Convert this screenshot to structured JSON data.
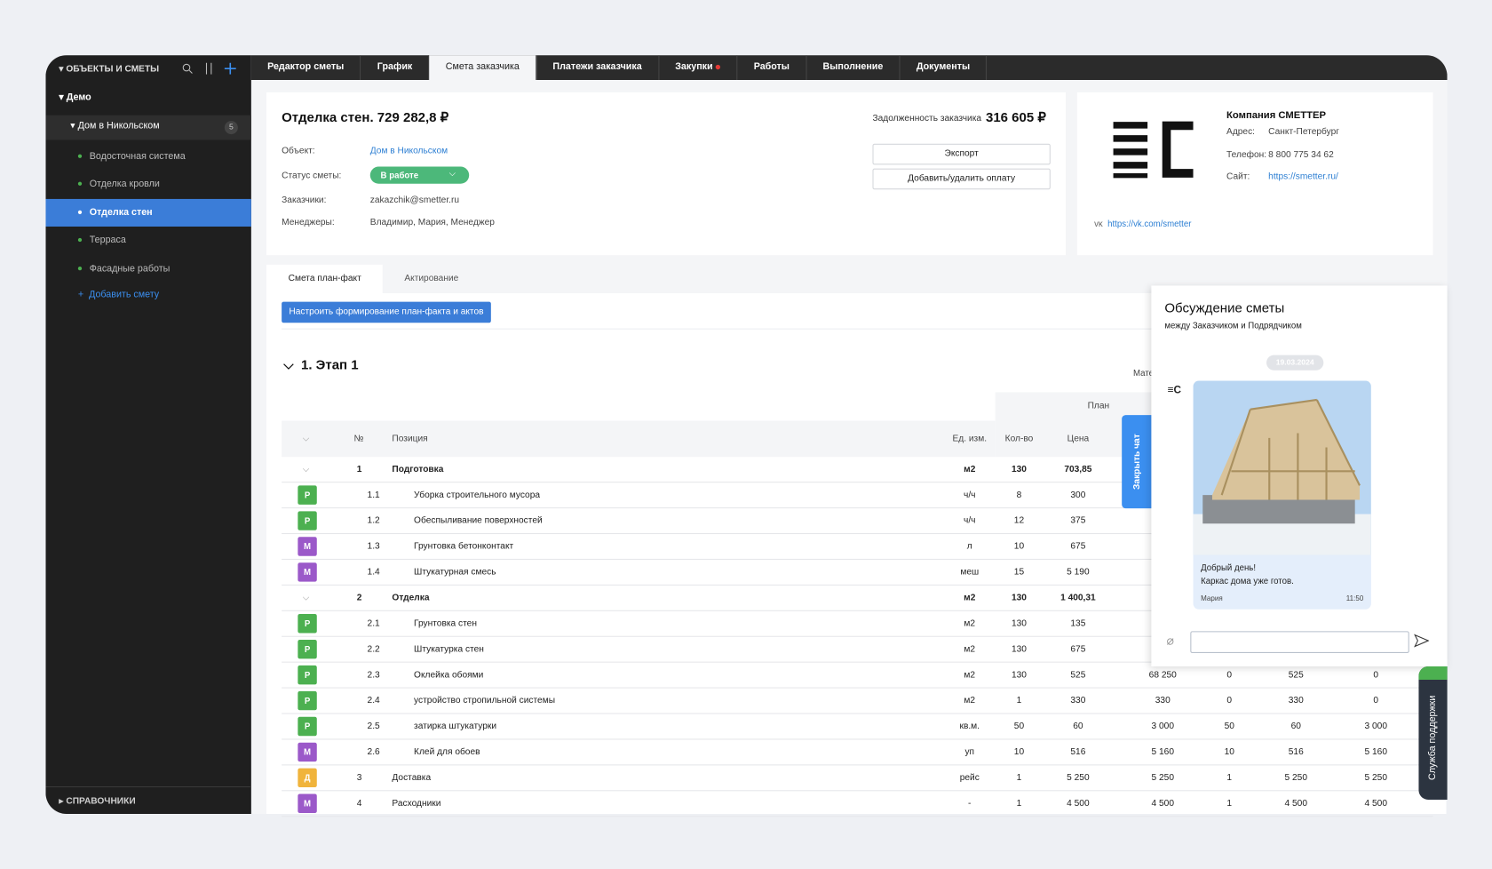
{
  "sidebar": {
    "header": "ОБЪЕКТЫ И СМЕТЫ",
    "group": "Демо",
    "object": "Дом в Никольском",
    "object_badge": "5",
    "items": [
      "Водосточная система",
      "Отделка кровли",
      "Отделка стен",
      "Терраса",
      "Фасадные работы"
    ],
    "active_item": 2,
    "add": "Добавить смету",
    "footer": "СПРАВОЧНИКИ"
  },
  "tabs": {
    "items": [
      "Редактор сметы",
      "График",
      "Смета заказчика",
      "Платежи заказчика",
      "Закупки",
      "Работы",
      "Выполнение",
      "Документы"
    ],
    "active": 2,
    "dot": 4
  },
  "estimate": {
    "title": "Отделка стен. 729 282,8 ₽",
    "debt_label": "Задолженность заказчика",
    "debt": "316 605 ₽",
    "fields": [
      {
        "label": "Объект:",
        "value": "Дом в Никольском"
      },
      {
        "label": "Статус сметы:",
        "value": "В работе"
      },
      {
        "label": "Заказчики:",
        "value": "zakazchik@smetter.ru"
      },
      {
        "label": "Менеджеры:",
        "value": "Владимир, Мария, Менеджер"
      }
    ],
    "buttons": [
      "Экспорт",
      "Добавить/удалить оплату"
    ]
  },
  "company": {
    "name": "Компания СМЕТТЕР",
    "rows": [
      {
        "label": "Адрес:",
        "value": "Санкт-Петербург"
      },
      {
        "label": "Телефон:",
        "value": "8 800 775 34 62"
      },
      {
        "label": "Сайт:",
        "value": "https://smetter.ru/"
      }
    ],
    "vk": "https://vk.com/smetter"
  },
  "subtabs": {
    "items": [
      "Смета план-факт",
      "Актирование"
    ],
    "active": 0
  },
  "setup_button": "Настроить формирование план-факта и актов",
  "stage": "1. Этап 1",
  "table": {
    "group_cut": "Мате",
    "plan": "План",
    "columns": [
      "№",
      "Позиция",
      "Ед. изм.",
      "Кол-во",
      "Цена"
    ],
    "rows": [
      {
        "num": "1",
        "name": "Подготовка",
        "unit": "м2",
        "qty": "130",
        "price": "703,85",
        "rest": []
      },
      {
        "badge": "Р",
        "num": "1.1",
        "name": "Уборка строительного мусора",
        "unit": "ч/ч",
        "qty": "8",
        "price": "300",
        "rest": []
      },
      {
        "badge": "Р",
        "num": "1.2",
        "name": "Обеспыливание поверхностей",
        "unit": "ч/ч",
        "qty": "12",
        "price": "375",
        "rest": []
      },
      {
        "badge": "М",
        "num": "1.3",
        "name": "Грунтовка бетонконтакт",
        "unit": "л",
        "qty": "10",
        "price": "675",
        "rest": []
      },
      {
        "badge": "М",
        "num": "1.4",
        "name": "Штукатурная смесь",
        "unit": "меш",
        "qty": "15",
        "price": "5 190",
        "rest": []
      },
      {
        "num": "2",
        "name": "Отделка",
        "unit": "м2",
        "qty": "130",
        "price": "1 400,31",
        "rest": []
      },
      {
        "badge": "Р",
        "num": "2.1",
        "name": "Грунтовка стен",
        "unit": "м2",
        "qty": "130",
        "price": "135",
        "rest": []
      },
      {
        "badge": "Р",
        "num": "2.2",
        "name": "Штукатурка стен",
        "unit": "м2",
        "qty": "130",
        "price": "675",
        "rest": []
      },
      {
        "badge": "Р",
        "num": "2.3",
        "name": "Оклейка обоями",
        "unit": "м2",
        "qty": "130",
        "price": "525",
        "rest": [
          "68 250",
          "0",
          "525",
          "0"
        ]
      },
      {
        "badge": "Р",
        "num": "2.4",
        "name": "устройство стропильной системы",
        "unit": "м2",
        "qty": "1",
        "price": "330",
        "rest": [
          "330",
          "0",
          "330",
          "0"
        ]
      },
      {
        "badge": "Р",
        "num": "2.5",
        "name": "затирка штукатурки",
        "unit": "кв.м.",
        "qty": "50",
        "price": "60",
        "rest": [
          "3 000",
          "50",
          "60",
          "3 000"
        ]
      },
      {
        "badge": "М",
        "num": "2.6",
        "name": "Клей для обоев",
        "unit": "уп",
        "qty": "10",
        "price": "516",
        "rest": [
          "5 160",
          "10",
          "516",
          "5 160"
        ]
      },
      {
        "badge": "Д",
        "num": "3",
        "name": "Доставка",
        "unit": "рейс",
        "qty": "1",
        "price": "5 250",
        "rest": [
          "5 250",
          "1",
          "5 250",
          "5 250"
        ]
      },
      {
        "badge": "М",
        "num": "4",
        "name": "Расходники",
        "unit": "-",
        "qty": "1",
        "price": "4 500",
        "rest": [
          "4 500",
          "1",
          "4 500",
          "4 500"
        ]
      }
    ]
  },
  "chat": {
    "title": "Обсуждение сметы",
    "subtitle": "между Заказчиком и Подрядчиком",
    "date": "19.03.2024",
    "message": [
      "Добрый день!",
      "Каркас дома уже готов."
    ],
    "author": "Мария",
    "time": "11:50",
    "close": "Закрыть чат"
  },
  "support": "Служба поддержки"
}
